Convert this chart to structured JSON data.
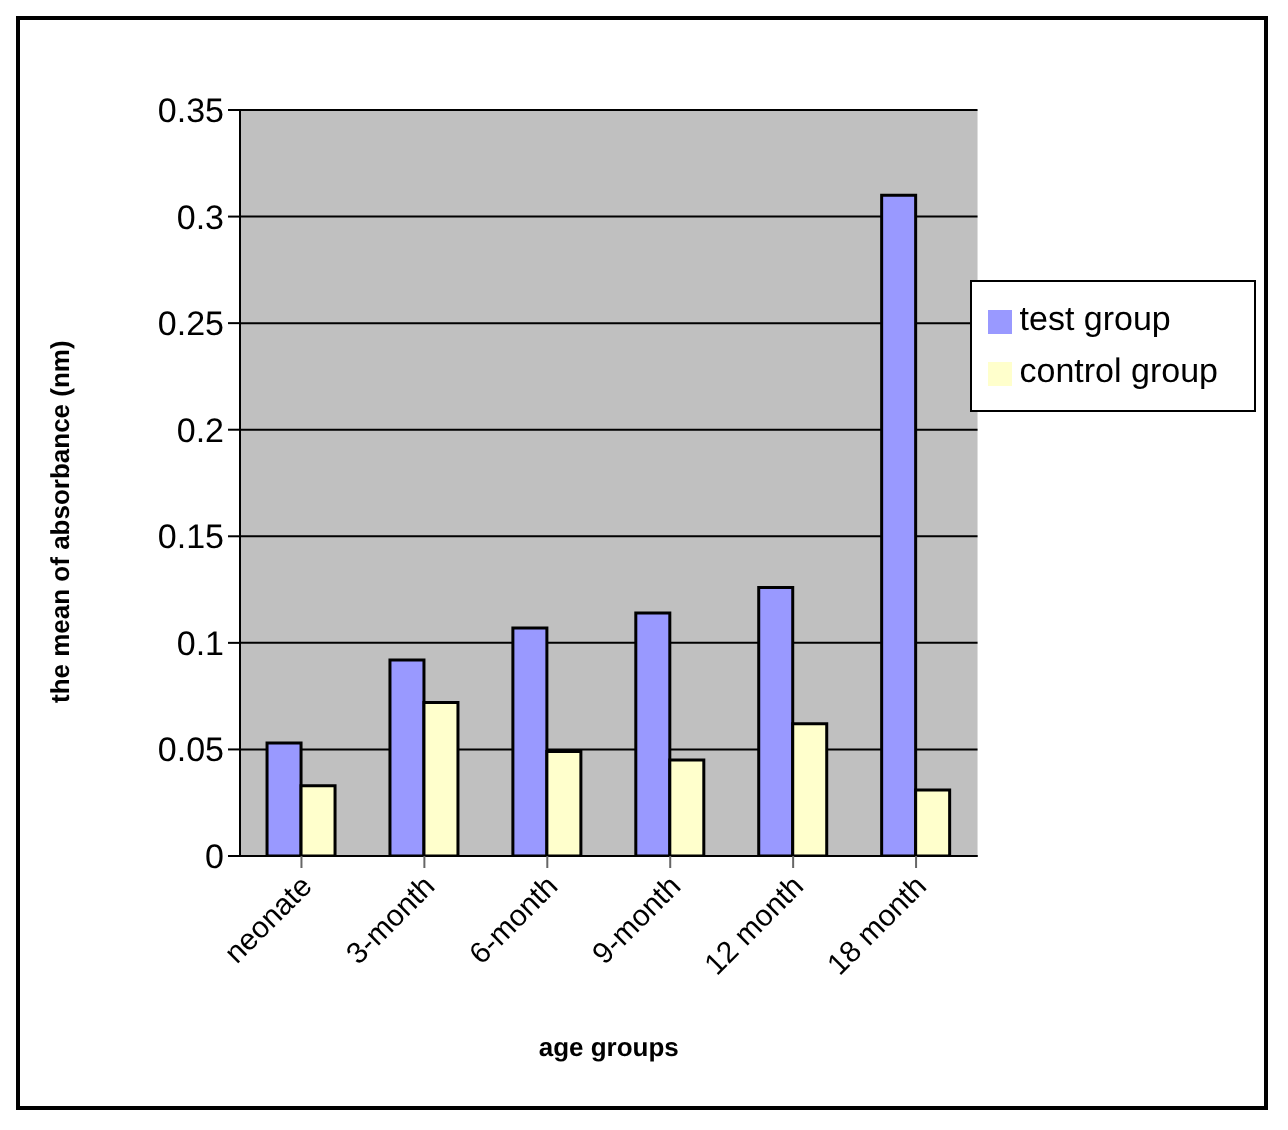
{
  "chart_data": {
    "type": "bar",
    "xlabel": "age groups",
    "ylabel": "the mean of absorbance (nm)",
    "categories": [
      "neonate",
      "3-month",
      "6-month",
      "9-month",
      "12 month",
      "18 month"
    ],
    "series": [
      {
        "name": "test group",
        "color": "#9999ff",
        "values": [
          0.053,
          0.092,
          0.107,
          0.114,
          0.126,
          0.31
        ]
      },
      {
        "name": "control group",
        "color": "#ffffcc",
        "values": [
          0.033,
          0.072,
          0.049,
          0.045,
          0.062,
          0.031
        ]
      }
    ],
    "ylim": [
      0,
      0.35
    ],
    "yticks": [
      0,
      0.05,
      0.1,
      0.15,
      0.2,
      0.25,
      0.3,
      0.35
    ],
    "grid": "y",
    "legend": "right"
  }
}
